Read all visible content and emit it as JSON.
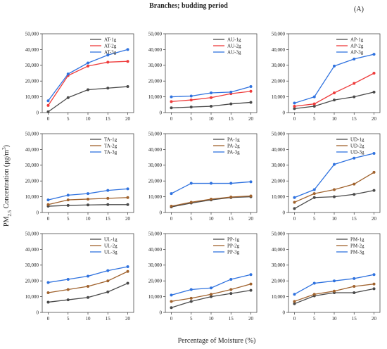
{
  "figure": {
    "title": "Branches; budding period",
    "panel_label": "(A)",
    "ylabel": "PM2.5 Concentration (μg/m³)",
    "ylabel_parts": {
      "pre": "PM",
      "sub": "2.5",
      "post": " Concentration (μg/m",
      "sup": "3",
      "close": ")"
    },
    "xlabel": "Percentage of Moisture (%)"
  },
  "colors": {
    "1g": "#4a4a4a",
    "2g": "#ee3b3b",
    "3g": "#2f72df"
  },
  "colors_brown": {
    "1g": "#4a4a4a",
    "2g": "#a0622d",
    "3g": "#2f72df"
  },
  "chart_data": [
    {
      "type": "line",
      "x": [
        0,
        5,
        10,
        15,
        20
      ],
      "ylim": [
        0,
        50000
      ],
      "yticks": [
        "0",
        "10,000",
        "20,000",
        "30,000",
        "40,000",
        "50,000"
      ],
      "xticks": [
        "0",
        "5",
        "10",
        "15",
        "20"
      ],
      "palette": "red",
      "series": [
        {
          "name": "AT-1g",
          "values": [
            500,
            9500,
            14500,
            15500,
            16500
          ]
        },
        {
          "name": "AT-2g",
          "values": [
            4500,
            23500,
            29500,
            32000,
            32500
          ]
        },
        {
          "name": "AT-3g",
          "values": [
            7500,
            24500,
            31500,
            36500,
            40000
          ]
        }
      ]
    },
    {
      "type": "line",
      "x": [
        0,
        5,
        10,
        15,
        20
      ],
      "ylim": [
        0,
        50000
      ],
      "yticks": [
        "0",
        "10,000",
        "20,000",
        "30,000",
        "40,000",
        "50,000"
      ],
      "xticks": [
        "0",
        "5",
        "10",
        "15",
        "20"
      ],
      "palette": "red",
      "series": [
        {
          "name": "AU-1g",
          "values": [
            3000,
            3500,
            4000,
            5500,
            6500
          ]
        },
        {
          "name": "AU-2g",
          "values": [
            7000,
            8000,
            9500,
            12000,
            13500
          ]
        },
        {
          "name": "AU-3g",
          "values": [
            10000,
            10500,
            12500,
            13000,
            16500
          ]
        }
      ]
    },
    {
      "type": "line",
      "x": [
        0,
        5,
        10,
        15,
        20
      ],
      "ylim": [
        0,
        50000
      ],
      "yticks": [
        "0",
        "10,000",
        "20,000",
        "30,000",
        "40,000",
        "50,000"
      ],
      "xticks": [
        "0",
        "5",
        "10",
        "15",
        "20"
      ],
      "palette": "red",
      "series": [
        {
          "name": "AP-1g",
          "values": [
            2500,
            4000,
            8000,
            10000,
            13000
          ]
        },
        {
          "name": "AP-2g",
          "values": [
            4000,
            5500,
            12500,
            18500,
            25000
          ]
        },
        {
          "name": "AP-3g",
          "values": [
            6000,
            10000,
            29500,
            34000,
            37000
          ]
        }
      ]
    },
    {
      "type": "line",
      "x": [
        0,
        5,
        10,
        15,
        20
      ],
      "ylim": [
        0,
        50000
      ],
      "yticks": [
        "0",
        "10,000",
        "20,000",
        "30,000",
        "40,000",
        "50,000"
      ],
      "xticks": [
        "0",
        "5",
        "10",
        "15",
        "20"
      ],
      "palette": "brown",
      "series": [
        {
          "name": "TA-1g",
          "values": [
            4000,
            4500,
            4800,
            5000,
            5000
          ]
        },
        {
          "name": "TA-2g",
          "values": [
            5000,
            8000,
            8500,
            9000,
            9500
          ]
        },
        {
          "name": "TA-3g",
          "values": [
            8000,
            11000,
            12000,
            14000,
            15000
          ]
        }
      ]
    },
    {
      "type": "line",
      "x": [
        0,
        5,
        10,
        15,
        20
      ],
      "ylim": [
        0,
        50000
      ],
      "yticks": [
        "0",
        "10,000",
        "20,000",
        "30,000",
        "40,000",
        "50,000"
      ],
      "xticks": [
        "0",
        "5",
        "10",
        "15",
        "20"
      ],
      "palette": "brown",
      "series": [
        {
          "name": "PA-1g",
          "values": [
            3500,
            6000,
            8000,
            9500,
            10000
          ]
        },
        {
          "name": "PA-2g",
          "values": [
            4000,
            6500,
            8500,
            9800,
            10500
          ]
        },
        {
          "name": "PA-3g",
          "values": [
            12000,
            18500,
            18500,
            18500,
            19500
          ]
        }
      ]
    },
    {
      "type": "line",
      "x": [
        0,
        5,
        10,
        15,
        20
      ],
      "ylim": [
        0,
        50000
      ],
      "yticks": [
        "0",
        "10,000",
        "20,000",
        "30,000",
        "40,000",
        "50,000"
      ],
      "xticks": [
        "0",
        "5",
        "10",
        "15",
        "20"
      ],
      "palette": "brown",
      "series": [
        {
          "name": "UD-1g",
          "values": [
            2500,
            9500,
            10000,
            11500,
            14000
          ]
        },
        {
          "name": "UD-2g",
          "values": [
            6500,
            12000,
            14500,
            18000,
            25500
          ]
        },
        {
          "name": "UD-3g",
          "values": [
            9500,
            14500,
            30500,
            34500,
            37500
          ]
        }
      ]
    },
    {
      "type": "line",
      "x": [
        0,
        5,
        10,
        15,
        20
      ],
      "ylim": [
        0,
        50000
      ],
      "yticks": [
        "0",
        "10,000",
        "20,000",
        "30,000",
        "40,000",
        "50,000"
      ],
      "xticks": [
        "0",
        "5",
        "10",
        "15",
        "20"
      ],
      "palette": "brown",
      "series": [
        {
          "name": "UL-1g",
          "values": [
            6500,
            8000,
            9500,
            13000,
            18500
          ]
        },
        {
          "name": "UL-2g",
          "values": [
            12500,
            14500,
            16500,
            20000,
            26000
          ]
        },
        {
          "name": "UL-3g",
          "values": [
            19000,
            21000,
            23000,
            26500,
            29000
          ]
        }
      ]
    },
    {
      "type": "line",
      "x": [
        0,
        5,
        10,
        15,
        20
      ],
      "ylim": [
        0,
        50000
      ],
      "yticks": [
        "0",
        "10,000",
        "20,000",
        "30,000",
        "40,000",
        "50,000"
      ],
      "xticks": [
        "0",
        "5",
        "10",
        "15",
        "20"
      ],
      "palette": "brown",
      "series": [
        {
          "name": "PP-1g",
          "values": [
            3000,
            7000,
            10000,
            12000,
            14000
          ]
        },
        {
          "name": "PP-2g",
          "values": [
            7000,
            9000,
            11500,
            14500,
            18000
          ]
        },
        {
          "name": "PP-3g",
          "values": [
            11000,
            14500,
            15500,
            21000,
            24000
          ]
        }
      ]
    },
    {
      "type": "line",
      "x": [
        0,
        5,
        10,
        15,
        20
      ],
      "ylim": [
        0,
        50000
      ],
      "yticks": [
        "0",
        "10,000",
        "20,000",
        "30,000",
        "40,000",
        "50,000"
      ],
      "xticks": [
        "0",
        "5",
        "10",
        "15",
        "20"
      ],
      "palette": "brown",
      "series": [
        {
          "name": "PM-1g",
          "values": [
            5500,
            10500,
            12500,
            12500,
            15000
          ]
        },
        {
          "name": "PM-2g",
          "values": [
            7000,
            11500,
            13500,
            16500,
            18000
          ]
        },
        {
          "name": "PM-3g",
          "values": [
            11500,
            18500,
            20000,
            21500,
            24000
          ]
        }
      ]
    }
  ]
}
